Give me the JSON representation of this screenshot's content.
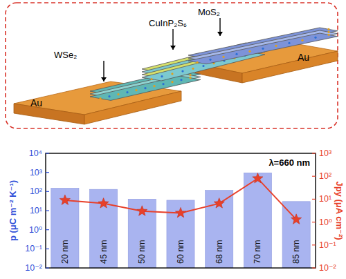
{
  "chart_data": {
    "type": "bar",
    "ylabel": "p (μC m⁻² K⁻¹)",
    "y2label": "Jpy (μA cm⁻²)",
    "annotation": "λ=660 nm",
    "categories": [
      "20 nm",
      "45 nm",
      "50 nm",
      "60 nm",
      "68 nm",
      "70 nm",
      "85 nm"
    ],
    "series": [
      {
        "type": "bar",
        "color": "#a9b4f0",
        "axis": "y",
        "values": [
          150,
          130,
          40,
          35,
          115,
          950,
          30
        ]
      },
      {
        "type": "line",
        "color": "#e8402a",
        "marker": "star",
        "axis": "y2",
        "values": [
          9,
          6.5,
          3,
          2.5,
          6.5,
          80,
          1.3
        ]
      }
    ],
    "log": "y",
    "grid": false,
    "ylim": [
      0.01,
      10000
    ],
    "yticks": [
      {
        "value": 0.01,
        "label": "10⁻²"
      },
      {
        "value": 0.1,
        "label": "10⁻¹"
      },
      {
        "value": 1,
        "label": "10⁰"
      },
      {
        "value": 10,
        "label": "10¹"
      },
      {
        "value": 100,
        "label": "10²"
      },
      {
        "value": 1000,
        "label": "10³"
      },
      {
        "value": 10000,
        "label": "10⁴"
      }
    ],
    "y2lim": [
      0.01,
      1000
    ],
    "y2ticks": [
      {
        "value": 0.01,
        "label": "10⁻²"
      },
      {
        "value": 0.1,
        "label": "10⁻¹"
      },
      {
        "value": 1,
        "label": "10⁰"
      },
      {
        "value": 10,
        "label": "10¹"
      },
      {
        "value": 100,
        "label": "10²"
      },
      {
        "value": 1000,
        "label": "10³"
      }
    ]
  },
  "schematic": {
    "layers": [
      "WSe₂",
      "CuInP₂S₆",
      "MoS₂"
    ],
    "electrodes": [
      "Au",
      "Au"
    ]
  }
}
